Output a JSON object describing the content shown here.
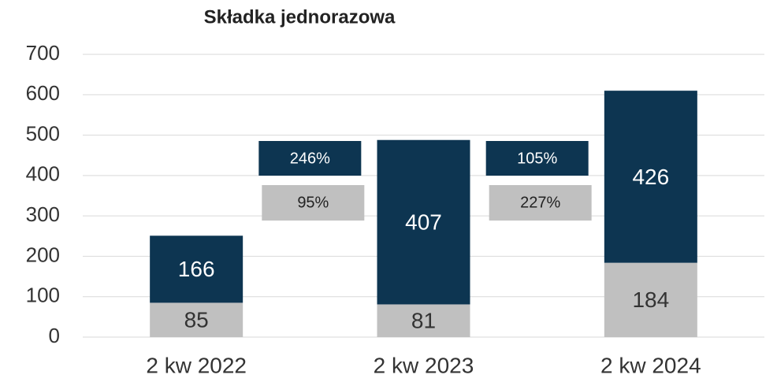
{
  "chart_data": {
    "type": "stacked_bar",
    "title": "Składka jednorazowa",
    "categories": [
      "2 kw 2022",
      "2 kw 2023",
      "2 kw 2024"
    ],
    "series": [
      {
        "color": "#c0c0c0",
        "values": [
          85,
          81,
          184
        ]
      },
      {
        "color": "#0d3551",
        "values": [
          166,
          407,
          426
        ]
      }
    ],
    "ylim": [
      0,
      700
    ],
    "yticks": [
      0,
      100,
      200,
      300,
      400,
      500,
      600,
      700
    ],
    "grid": true,
    "annotations": [
      {
        "text": "246%",
        "color": "#0d3551"
      },
      {
        "text": "95%",
        "color": "#c0c0c0"
      },
      {
        "text": "105%",
        "color": "#0d3551"
      },
      {
        "text": "227%",
        "color": "#c0c0c0"
      }
    ]
  }
}
